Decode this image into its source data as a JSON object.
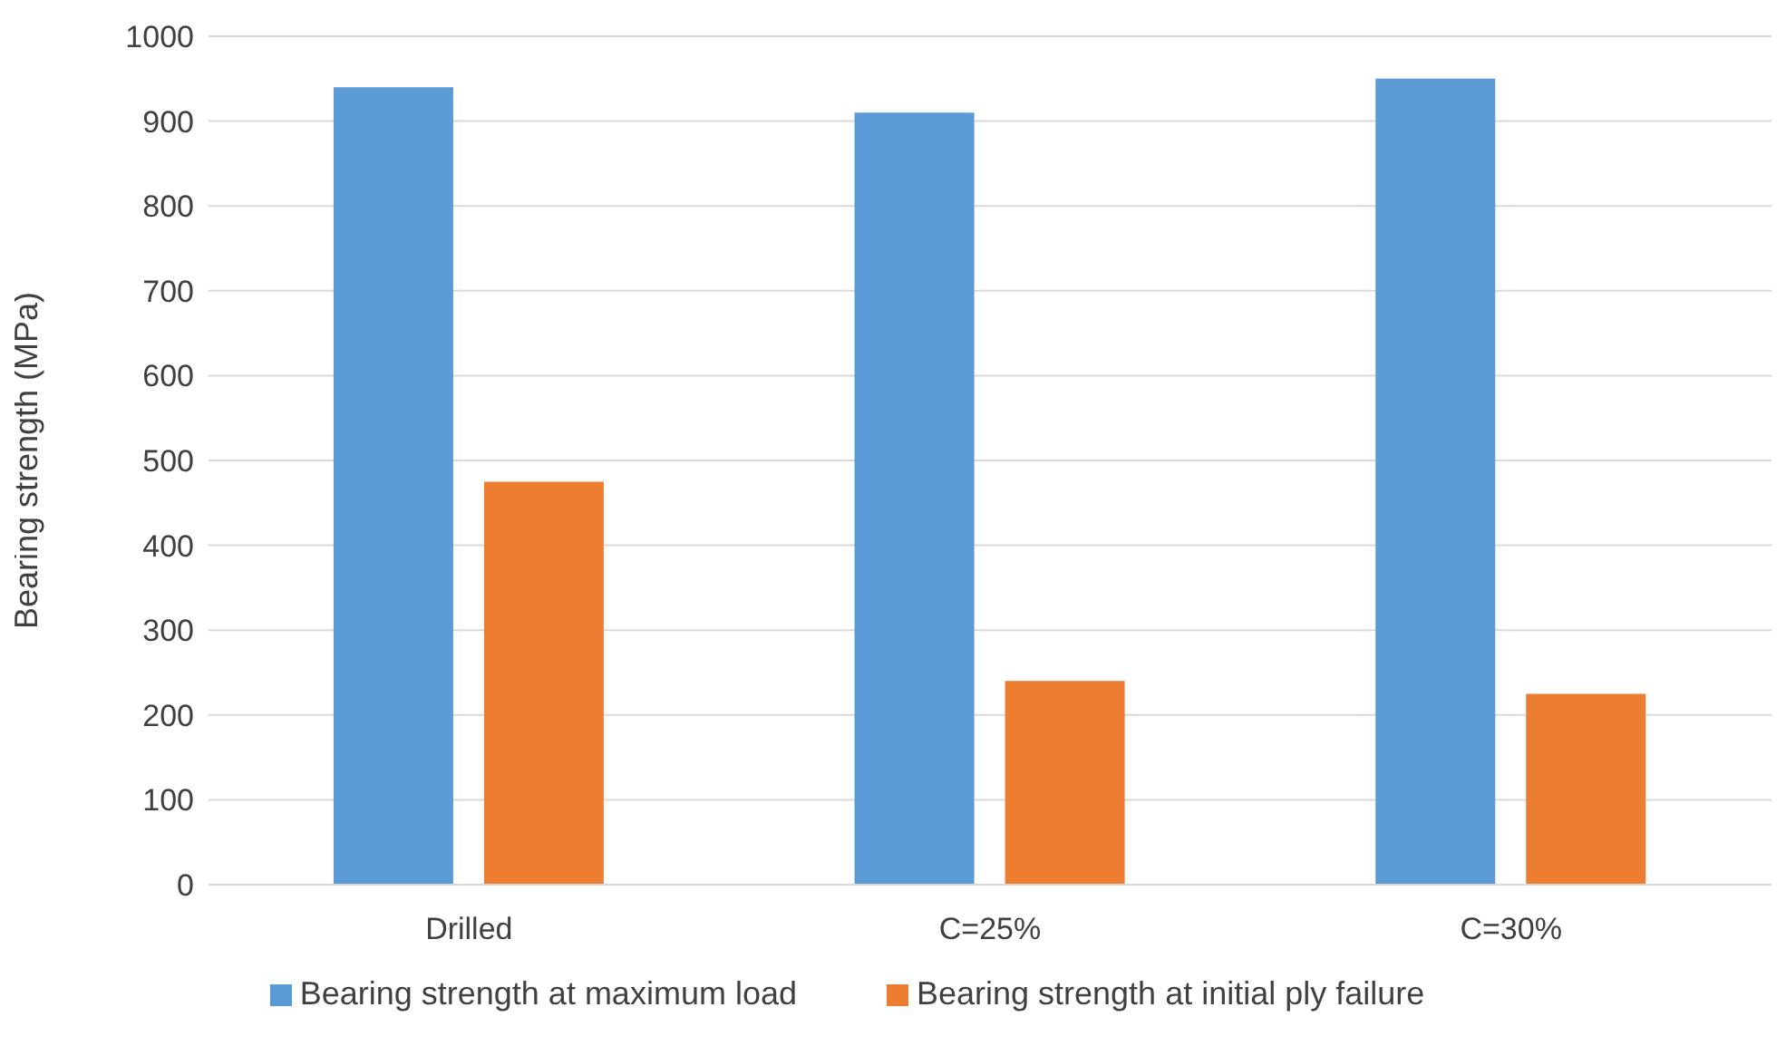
{
  "chart_data": {
    "type": "bar",
    "ylabel": "Bearing strength (MPa)",
    "categories": [
      "Drilled",
      "C=25%",
      "C=30%"
    ],
    "series": [
      {
        "name": "Bearing strength at maximum load",
        "color": "#5b9bd5",
        "values": [
          940,
          910,
          950
        ]
      },
      {
        "name": "Bearing strength at initial ply failure",
        "color": "#ed7d31",
        "values": [
          475,
          240,
          225
        ]
      }
    ],
    "ylim": [
      0,
      1000
    ],
    "yticks": [
      0,
      100,
      200,
      300,
      400,
      500,
      600,
      700,
      800,
      900,
      1000
    ],
    "grid": "y",
    "legend": "bottom"
  }
}
